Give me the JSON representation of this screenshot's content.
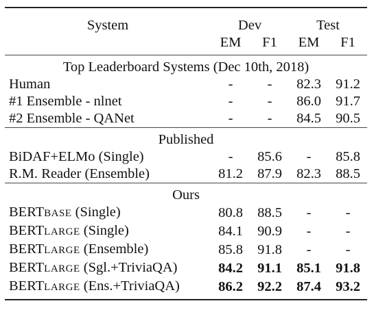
{
  "header": {
    "system": "System",
    "dev": "Dev",
    "test": "Test",
    "em1": "EM",
    "f1_1": "F1",
    "em2": "EM",
    "f1_2": "F1"
  },
  "sections": [
    {
      "title": "Top Leaderboard Systems (Dec 10th, 2018)",
      "rows": [
        {
          "name": "Human",
          "dev_em": "-",
          "dev_f1": "-",
          "test_em": "82.3",
          "test_f1": "91.2"
        },
        {
          "name": "#1 Ensemble - nlnet",
          "dev_em": "-",
          "dev_f1": "-",
          "test_em": "86.0",
          "test_f1": "91.7"
        },
        {
          "name": "#2 Ensemble - QANet",
          "dev_em": "-",
          "dev_f1": "-",
          "test_em": "84.5",
          "test_f1": "90.5"
        }
      ]
    },
    {
      "title": "Published",
      "rows": [
        {
          "name": "BiDAF+ELMo (Single)",
          "dev_em": "-",
          "dev_f1": "85.6",
          "test_em": "-",
          "test_f1": "85.8"
        },
        {
          "name": "R.M. Reader (Ensemble)",
          "dev_em": "81.2",
          "dev_f1": "87.9",
          "test_em": "82.3",
          "test_f1": "88.5"
        }
      ]
    },
    {
      "title": "Ours",
      "rows": [
        {
          "base": "BERT",
          "sub": "BASE",
          "suffix": " (Single)",
          "dev_em": "80.8",
          "dev_f1": "88.5",
          "test_em": "-",
          "test_f1": "-"
        },
        {
          "base": "BERT",
          "sub": "LARGE",
          "suffix": " (Single)",
          "dev_em": "84.1",
          "dev_f1": "90.9",
          "test_em": "-",
          "test_f1": "-"
        },
        {
          "base": "BERT",
          "sub": "LARGE",
          "suffix": " (Ensemble)",
          "dev_em": "85.8",
          "dev_f1": "91.8",
          "test_em": "-",
          "test_f1": "-"
        },
        {
          "base": "BERT",
          "sub": "LARGE",
          "suffix": " (Sgl.+TriviaQA)",
          "dev_em": "84.2",
          "dev_f1": "91.1",
          "test_em": "85.1",
          "test_f1": "91.8"
        },
        {
          "base": "BERT",
          "sub": "LARGE",
          "suffix": " (Ens.+TriviaQA)",
          "dev_em": "86.2",
          "dev_f1": "92.2",
          "test_em": "87.4",
          "test_f1": "93.2"
        }
      ]
    }
  ]
}
